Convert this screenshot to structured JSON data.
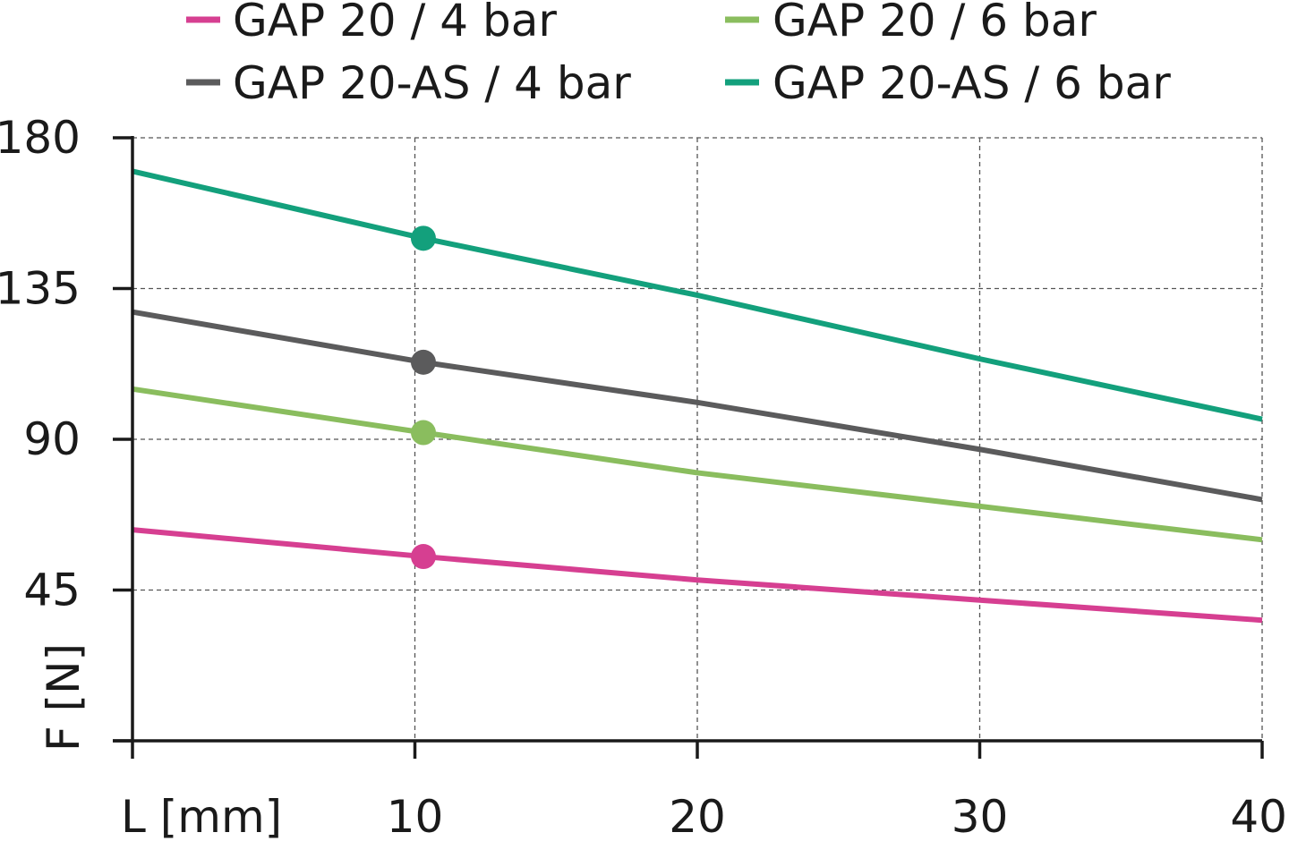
{
  "chart_data": {
    "type": "line",
    "xlabel": "L [mm]",
    "ylabel": "F [N]",
    "xlim": [
      0,
      40
    ],
    "ylim": [
      0,
      180
    ],
    "x_ticks": [
      10,
      20,
      30,
      40
    ],
    "y_ticks": [
      45,
      90,
      135,
      180
    ],
    "grid": true,
    "legend_position": "top",
    "series": [
      {
        "name": "GAP 20 / 4 bar",
        "color": "#d63f91",
        "x": [
          0,
          10.3,
          20,
          30,
          40
        ],
        "y": [
          63,
          55,
          48,
          42,
          36
        ],
        "marker": {
          "x": 10.3,
          "y": 55
        }
      },
      {
        "name": "GAP 20 / 6 bar",
        "color": "#8abd5e",
        "x": [
          0,
          10.3,
          20,
          30,
          40
        ],
        "y": [
          105,
          92,
          80,
          70,
          60
        ],
        "marker": {
          "x": 10.3,
          "y": 92
        }
      },
      {
        "name": "GAP 20-AS / 4 bar",
        "color": "#5b5b5c",
        "x": [
          0,
          10.3,
          20,
          30,
          40
        ],
        "y": [
          128,
          113,
          101,
          87,
          72
        ],
        "marker": {
          "x": 10.3,
          "y": 113
        }
      },
      {
        "name": "GAP 20-AS / 6 bar",
        "color": "#13a07c",
        "x": [
          0,
          10.3,
          20,
          30,
          40
        ],
        "y": [
          170,
          150,
          133,
          114,
          96
        ],
        "marker": {
          "x": 10.3,
          "y": 150
        }
      }
    ],
    "legend_order": [
      "GAP 20 / 4 bar",
      "GAP 20 / 6 bar",
      "GAP 20-AS / 4 bar",
      "GAP 20-AS / 6 bar"
    ]
  }
}
